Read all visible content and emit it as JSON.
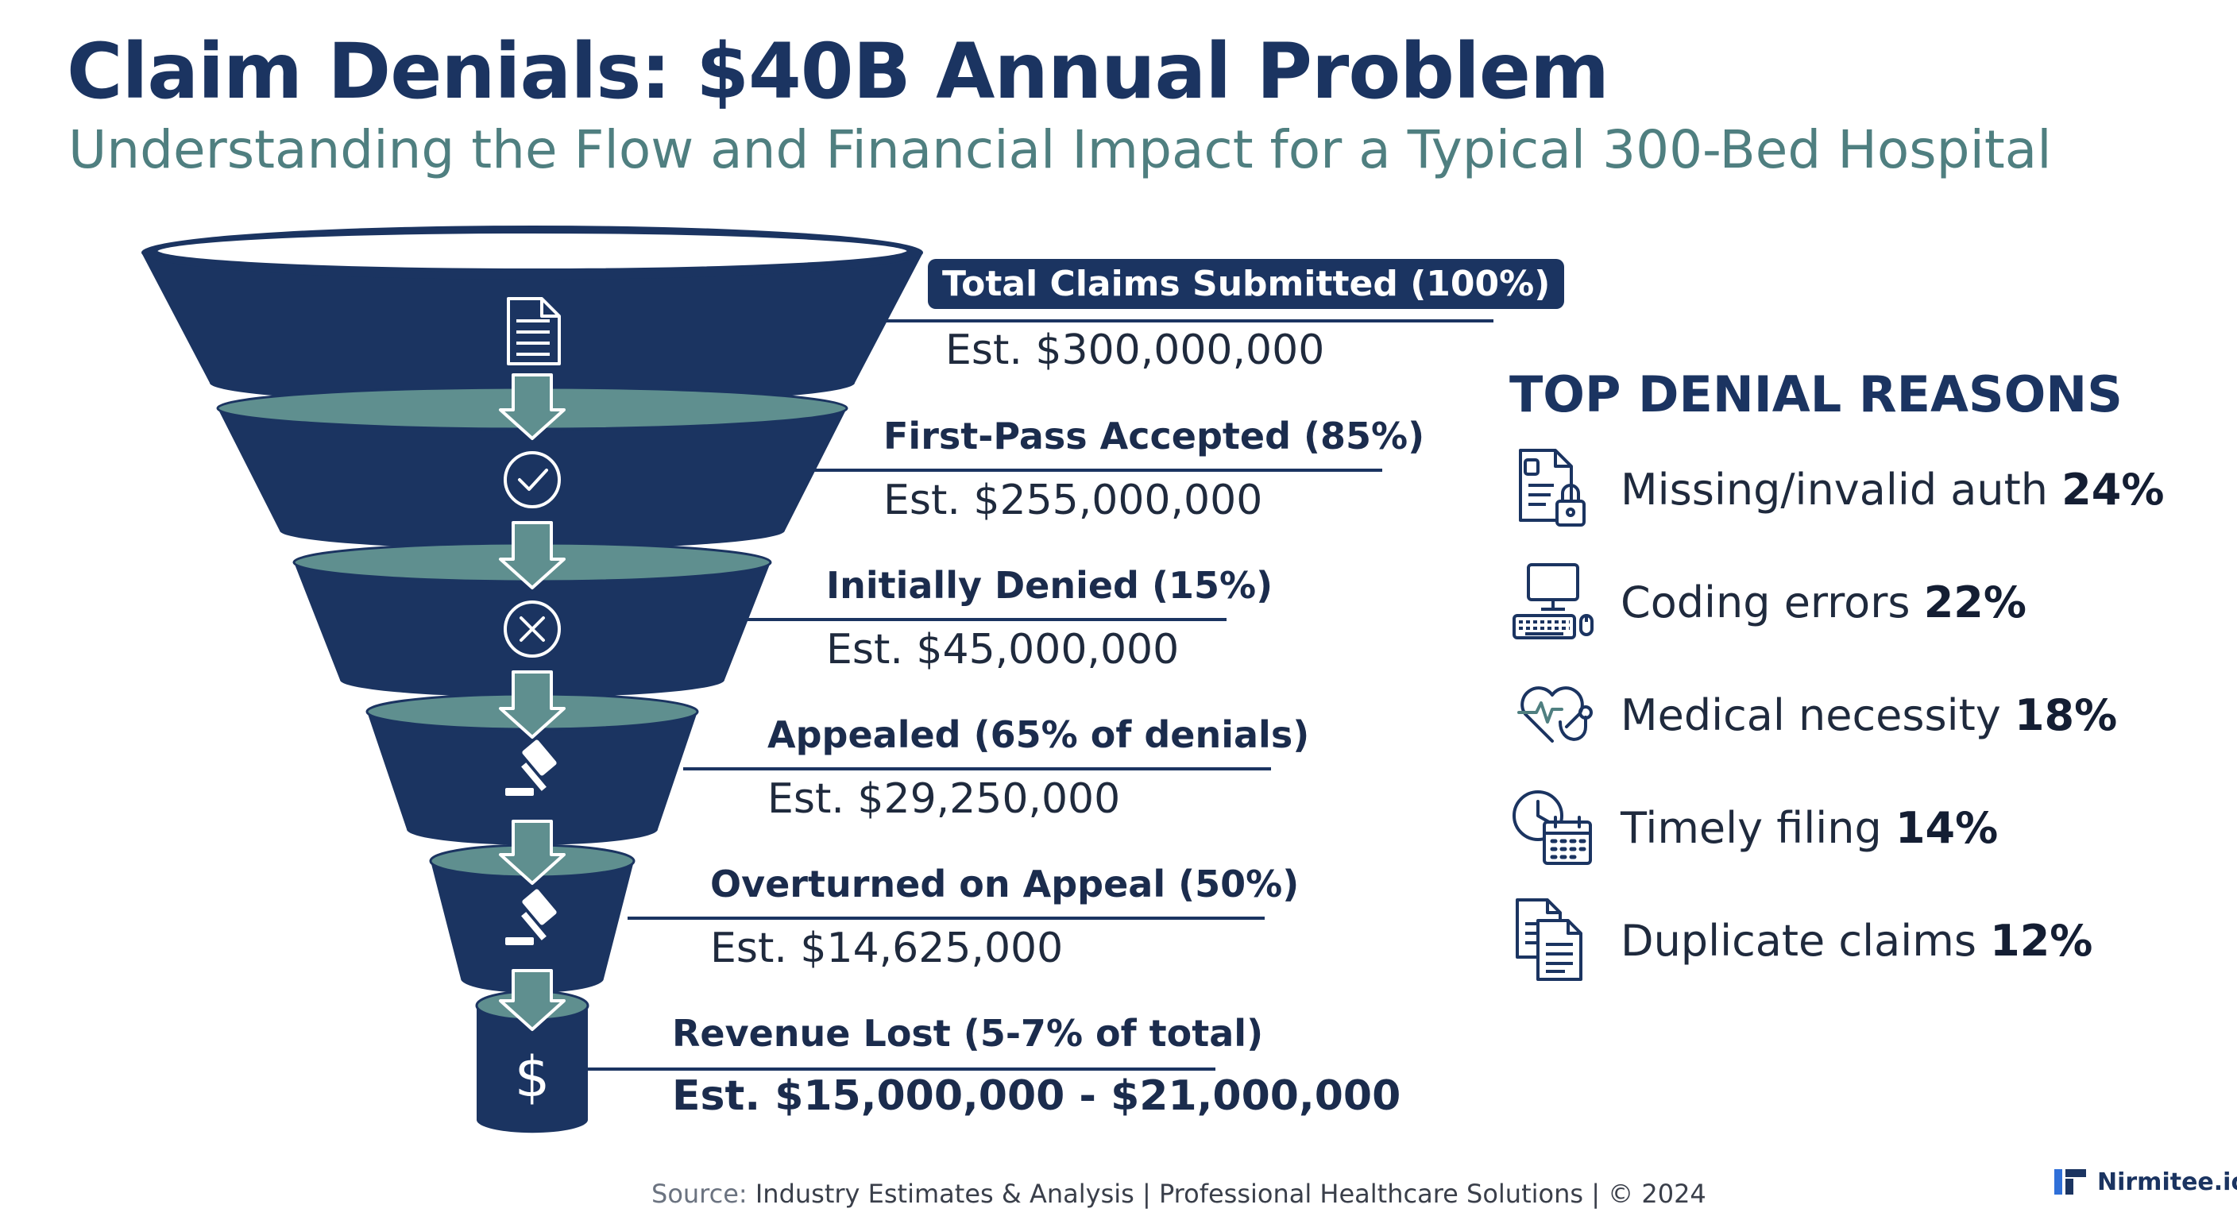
{
  "header": {
    "title": "Claim Denials: $40B Annual Problem",
    "subtitle": "Understanding the Flow and Financial Impact for a Typical 300-Bed Hospital"
  },
  "funnel": {
    "stages": [
      {
        "label": "Total Claims Submitted (100%)",
        "value": "Est. $300,000,000",
        "icon": "document-icon"
      },
      {
        "label": "First-Pass Accepted (85%)",
        "value": "Est. $255,000,000",
        "icon": "checkmark-circle-icon"
      },
      {
        "label": "Initially Denied (15%)",
        "value": "Est. $45,000,000",
        "icon": "x-circle-icon"
      },
      {
        "label": "Appealed (65% of denials)",
        "value": "Est. $29,250,000",
        "icon": "gavel-icon"
      },
      {
        "label": "Overturned on Appeal (50%)",
        "value": "Est. $14,625,000",
        "icon": "gavel-icon"
      },
      {
        "label": "Revenue Lost (5-7% of total)",
        "value": "Est. $15,000,000 - $21,000,000",
        "icon": "dollar-icon"
      }
    ],
    "colors": {
      "navy": "#1b3461",
      "teal": "#5f8f8f",
      "rim": "#ffffff"
    }
  },
  "reasons": {
    "title": "TOP DENIAL REASONS",
    "items": [
      {
        "label": "Missing/invalid auth",
        "pct": "24%",
        "icon": "document-lock-icon"
      },
      {
        "label": "Coding errors",
        "pct": "22%",
        "icon": "computer-icon"
      },
      {
        "label": "Medical necessity",
        "pct": "18%",
        "icon": "heart-stethoscope-icon"
      },
      {
        "label": "Timely filing",
        "pct": "14%",
        "icon": "clock-calendar-icon"
      },
      {
        "label": "Duplicate claims",
        "pct": "12%",
        "icon": "duplicate-documents-icon"
      }
    ]
  },
  "footer": {
    "source_label": "Source:",
    "source_text": " Industry Estimates & Analysis | Professional Healthcare Solutions |  © 2024"
  },
  "brand": {
    "name": "Nirmitee.io"
  }
}
